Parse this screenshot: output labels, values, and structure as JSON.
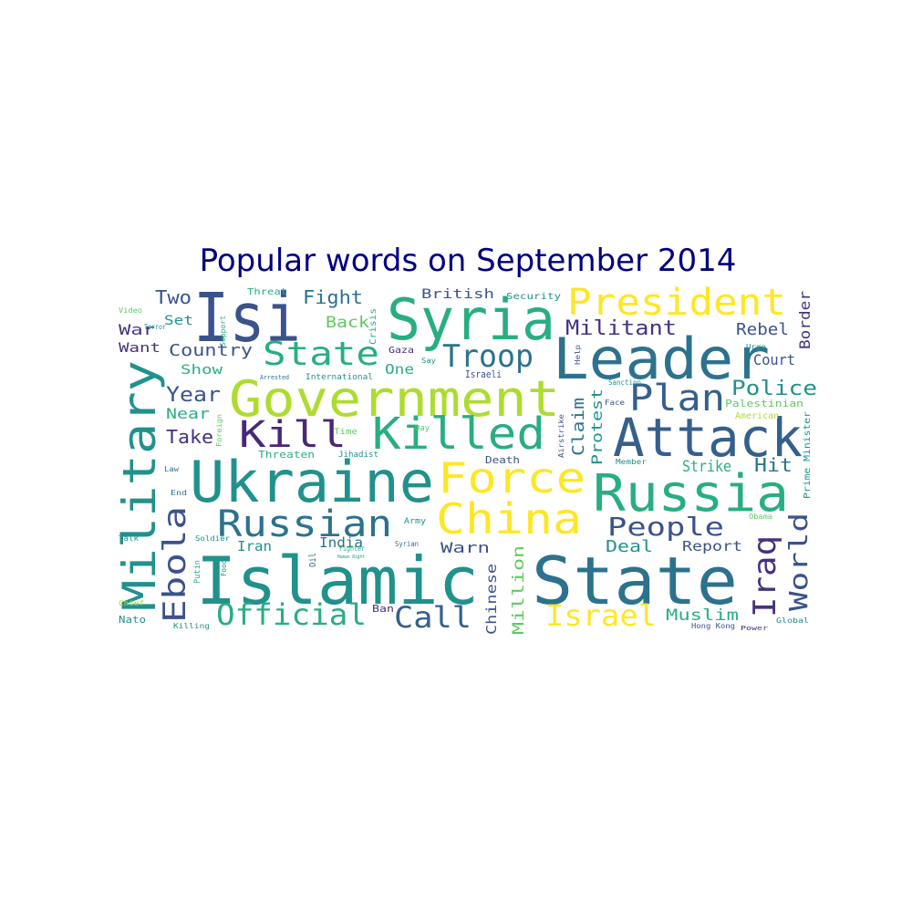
{
  "title": "Popular words on September 2014",
  "palette": {
    "purple": "#46327e",
    "indigo": "#482878",
    "blue": "#3b528b",
    "slate": "#355f8d",
    "steel": "#2c728e",
    "teal": "#21918c",
    "sea": "#28ae80",
    "green": "#5ec962",
    "lime": "#addc30",
    "yellow": "#fde725"
  },
  "words": [
    {
      "text": "Islamic",
      "color": "teal"
    },
    {
      "text": "State",
      "color": "steel"
    },
    {
      "text": "Isi",
      "color": "blue"
    },
    {
      "text": "Syria",
      "color": "sea"
    },
    {
      "text": "Leader",
      "color": "steel"
    },
    {
      "text": "Government",
      "color": "lime"
    },
    {
      "text": "Attack",
      "color": "slate"
    },
    {
      "text": "Ukraine",
      "color": "teal"
    },
    {
      "text": "Russia",
      "color": "sea"
    },
    {
      "text": "Killed",
      "color": "sea"
    },
    {
      "text": "Force",
      "color": "yellow"
    },
    {
      "text": "China",
      "color": "yellow"
    },
    {
      "text": "Military",
      "color": "teal"
    },
    {
      "text": "President",
      "color": "yellow"
    },
    {
      "text": "Russian",
      "color": "steel"
    },
    {
      "text": "Kill",
      "color": "indigo"
    },
    {
      "text": "State",
      "color": "sea"
    },
    {
      "text": "Plan",
      "color": "slate"
    },
    {
      "text": "Troop",
      "color": "steel"
    },
    {
      "text": "Ebola",
      "color": "blue"
    },
    {
      "text": "Iraq",
      "color": "purple"
    },
    {
      "text": "World",
      "color": "blue"
    },
    {
      "text": "Official",
      "color": "sea"
    },
    {
      "text": "Call",
      "color": "slate"
    },
    {
      "text": "Israel",
      "color": "yellow"
    },
    {
      "text": "People",
      "color": "blue"
    },
    {
      "text": "Militant",
      "color": "purple"
    },
    {
      "text": "Police",
      "color": "teal"
    },
    {
      "text": "Fight",
      "color": "steel"
    },
    {
      "text": "Two",
      "color": "blue"
    },
    {
      "text": "Country",
      "color": "blue"
    },
    {
      "text": "Year",
      "color": "blue"
    },
    {
      "text": "Take",
      "color": "purple"
    },
    {
      "text": "Near",
      "color": "sea"
    },
    {
      "text": "Back",
      "color": "green"
    },
    {
      "text": "Rebel",
      "color": "blue"
    },
    {
      "text": "Court",
      "color": "blue"
    },
    {
      "text": "Border",
      "color": "purple"
    },
    {
      "text": "Hit",
      "color": "steel"
    },
    {
      "text": "Strike",
      "color": "sea"
    },
    {
      "text": "Claim",
      "color": "steel"
    },
    {
      "text": "Protest",
      "color": "teal"
    },
    {
      "text": "Deal",
      "color": "teal"
    },
    {
      "text": "Report",
      "color": "blue"
    },
    {
      "text": "Muslim",
      "color": "sea"
    },
    {
      "text": "Million",
      "color": "green"
    },
    {
      "text": "Chinese",
      "color": "blue"
    },
    {
      "text": "Warn",
      "color": "blue"
    },
    {
      "text": "India",
      "color": "steel"
    },
    {
      "text": "Iran",
      "color": "teal"
    },
    {
      "text": "British",
      "color": "blue"
    },
    {
      "text": "One",
      "color": "sea"
    },
    {
      "text": "Show",
      "color": "sea"
    },
    {
      "text": "Set",
      "color": "teal"
    },
    {
      "text": "War",
      "color": "purple"
    },
    {
      "text": "Want",
      "color": "purple"
    },
    {
      "text": "Israeli",
      "color": "blue"
    },
    {
      "text": "Death",
      "color": "blue"
    },
    {
      "text": "Threaten",
      "color": "sea"
    },
    {
      "text": "Palestinian",
      "color": "green"
    },
    {
      "text": "American",
      "color": "lime"
    },
    {
      "text": "Ban",
      "color": "purple"
    },
    {
      "text": "Security",
      "color": "teal"
    },
    {
      "text": "Threat",
      "color": "sea"
    },
    {
      "text": "Gaza",
      "color": "purple"
    },
    {
      "text": "Say",
      "color": "teal"
    },
    {
      "text": "Support",
      "color": "sea"
    },
    {
      "text": "Video",
      "color": "green"
    },
    {
      "text": "Terror",
      "color": "teal"
    },
    {
      "text": "Crisis",
      "color": "sea"
    },
    {
      "text": "Arrested",
      "color": "steel"
    },
    {
      "text": "International",
      "color": "teal"
    },
    {
      "text": "Help",
      "color": "blue"
    },
    {
      "text": "Urge",
      "color": "teal"
    },
    {
      "text": "Sanction",
      "color": "teal"
    },
    {
      "text": "Face",
      "color": "blue"
    },
    {
      "text": "Time",
      "color": "green"
    },
    {
      "text": "Day",
      "color": "green"
    },
    {
      "text": "Foreign",
      "color": "green"
    },
    {
      "text": "Jihadist",
      "color": "teal"
    },
    {
      "text": "Airstrike",
      "color": "blue"
    },
    {
      "text": "Member",
      "color": "teal"
    },
    {
      "text": "Prime Minister",
      "color": "teal"
    },
    {
      "text": "Law",
      "color": "steel"
    },
    {
      "text": "End",
      "color": "steel"
    },
    {
      "text": "Talk",
      "color": "teal"
    },
    {
      "text": "Soldier",
      "color": "teal"
    },
    {
      "text": "Putin",
      "color": "sea"
    },
    {
      "text": "Food",
      "color": "teal"
    },
    {
      "text": "Oil",
      "color": "steel"
    },
    {
      "text": "Fighter",
      "color": "sea"
    },
    {
      "text": "Syrian",
      "color": "steel"
    },
    {
      "text": "Human Right",
      "color": "teal"
    },
    {
      "text": "Army",
      "color": "teal"
    },
    {
      "text": "Obama",
      "color": "green"
    },
    {
      "text": "Chief",
      "color": "lime"
    },
    {
      "text": "Nato",
      "color": "teal"
    },
    {
      "text": "Killing",
      "color": "teal"
    },
    {
      "text": "Hong Kong",
      "color": "blue"
    },
    {
      "text": "Power",
      "color": "purple"
    },
    {
      "text": "Global",
      "color": "teal"
    }
  ]
}
